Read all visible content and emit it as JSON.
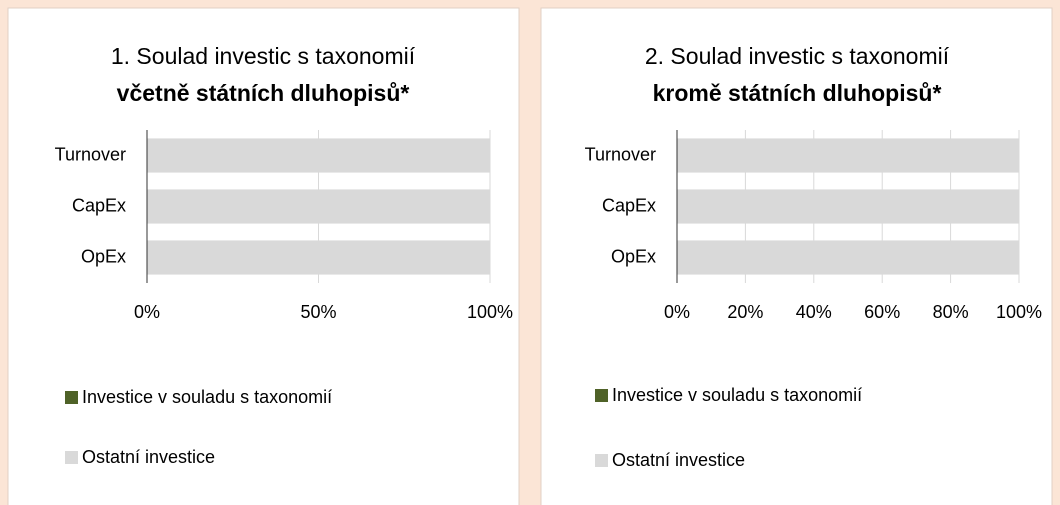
{
  "chart_data": [
    {
      "type": "bar",
      "orientation": "horizontal",
      "stacked": true,
      "title": "1. Soulad investic s taxonomií",
      "subtitle": "včetně státních dluhopisů*",
      "categories": [
        "Turnover",
        "CapEx",
        "OpEx"
      ],
      "series": [
        {
          "name": "Investice v souladu s taxonomií",
          "color": "#4f6228",
          "values": [
            0,
            0,
            0
          ]
        },
        {
          "name": "Ostatní investice",
          "color": "#d9d9d9",
          "values": [
            100,
            100,
            100
          ]
        }
      ],
      "xlim": [
        0,
        100
      ],
      "xticks": [
        {
          "value": 0,
          "label": "0%"
        },
        {
          "value": 50,
          "label": "50%"
        },
        {
          "value": 100,
          "label": "100%"
        }
      ],
      "grid": true,
      "legend": "bottom"
    },
    {
      "type": "bar",
      "orientation": "horizontal",
      "stacked": true,
      "title": "2. Soulad investic s taxonomií",
      "subtitle": "kromě státních dluhopisů*",
      "categories": [
        "Turnover",
        "CapEx",
        "OpEx"
      ],
      "series": [
        {
          "name": "Investice v souladu s taxonomií",
          "color": "#4f6228",
          "values": [
            0,
            0,
            0
          ]
        },
        {
          "name": "Ostatní investice",
          "color": "#d9d9d9",
          "values": [
            100,
            100,
            100
          ]
        }
      ],
      "xlim": [
        0,
        100
      ],
      "xticks": [
        {
          "value": 0,
          "label": "0%"
        },
        {
          "value": 20,
          "label": "20%"
        },
        {
          "value": 40,
          "label": "40%"
        },
        {
          "value": 60,
          "label": "60%"
        },
        {
          "value": 80,
          "label": "80%"
        },
        {
          "value": 100,
          "label": "100%"
        }
      ],
      "grid": true,
      "legend": "bottom"
    }
  ]
}
